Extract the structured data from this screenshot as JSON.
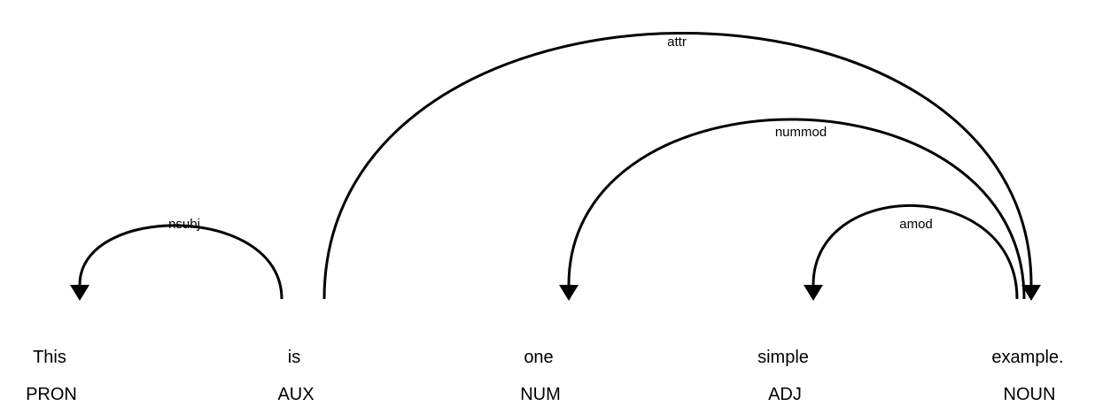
{
  "tokens": [
    {
      "word": "This",
      "tag": "PRON"
    },
    {
      "word": "is",
      "tag": "AUX"
    },
    {
      "word": "one",
      "tag": "NUM"
    },
    {
      "word": "simple",
      "tag": "ADJ"
    },
    {
      "word": "example.",
      "tag": "NOUN"
    }
  ],
  "arcs": [
    {
      "label": "nsubj",
      "head": 1,
      "dep": 0
    },
    {
      "label": "attr",
      "head": 1,
      "dep": 4
    },
    {
      "label": "nummod",
      "head": 4,
      "dep": 2
    },
    {
      "label": "amod",
      "head": 4,
      "dep": 3
    }
  ],
  "colors": {
    "stroke": "#000000",
    "text": "#000000",
    "background": "#ffffff"
  }
}
